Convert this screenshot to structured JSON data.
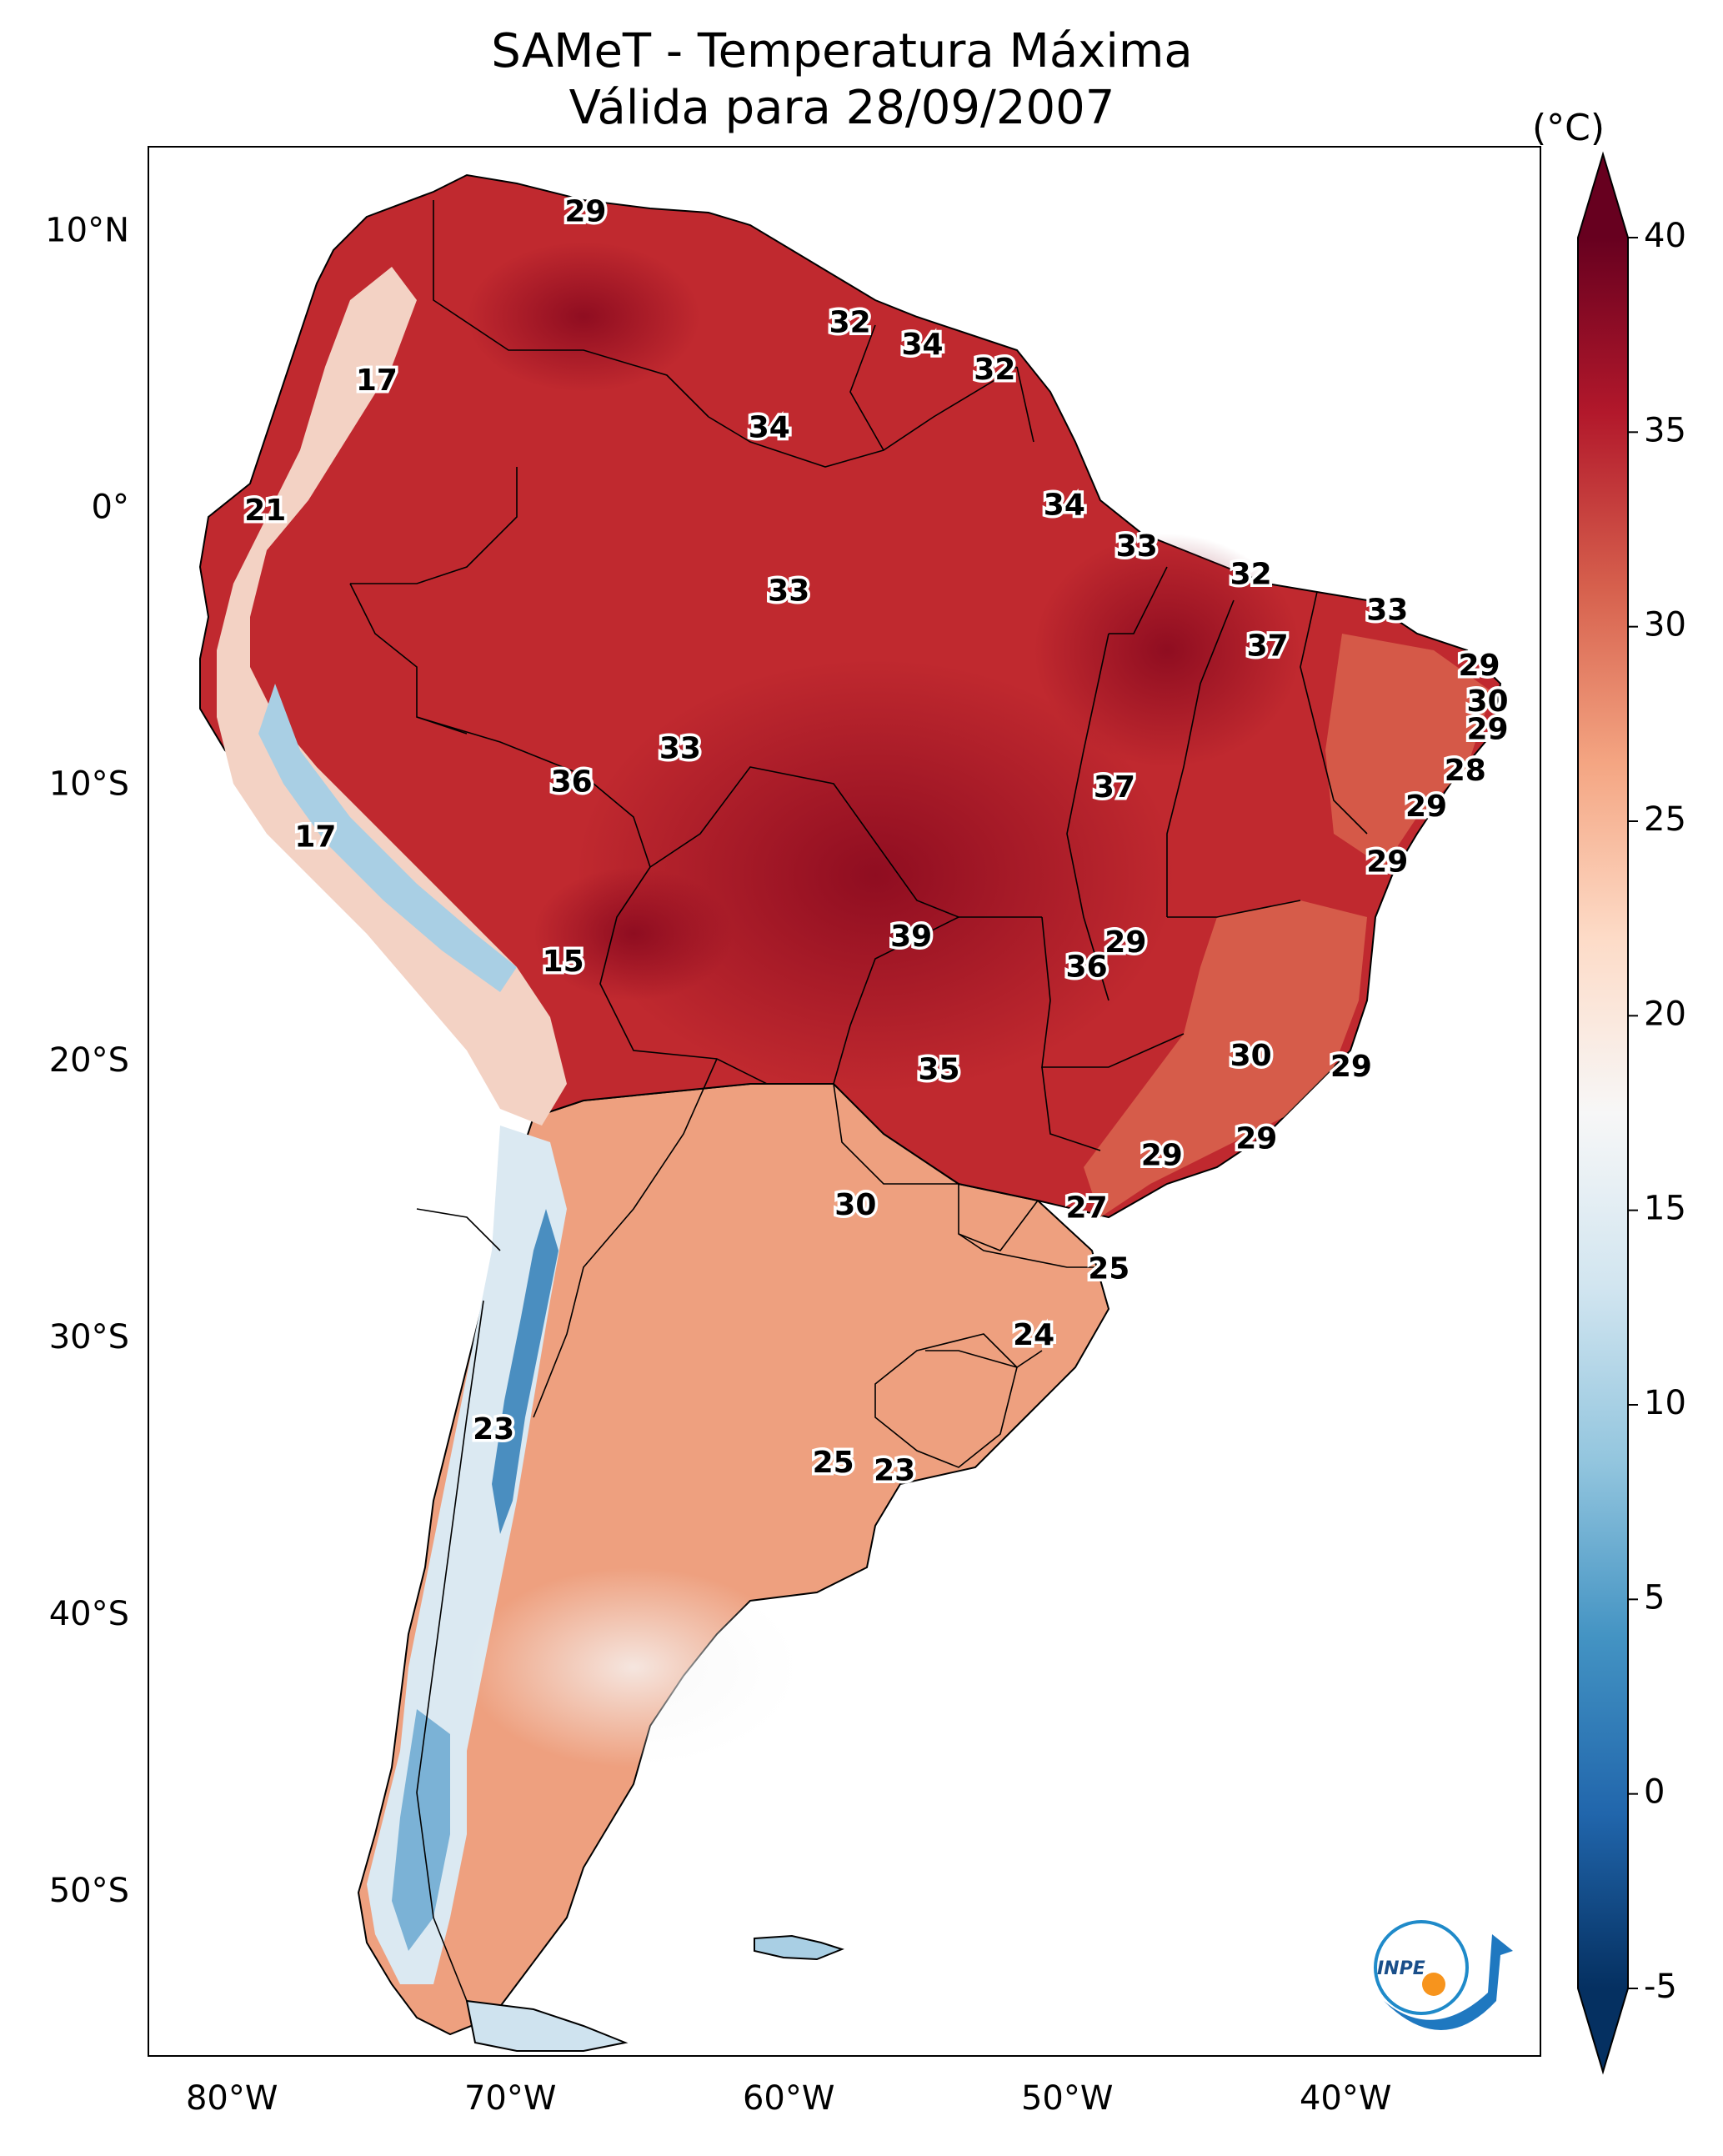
{
  "title": {
    "line1": "SAMeT - Temperatura Máxima",
    "line2": "Válida para 28/09/2007"
  },
  "colorbar": {
    "unit": "(°C)",
    "ticks": [
      "40",
      "35",
      "30",
      "25",
      "20",
      "15",
      "10",
      "5",
      "0",
      "-5"
    ],
    "tick_values": [
      40,
      35,
      30,
      25,
      20,
      15,
      10,
      5,
      0,
      -5
    ],
    "range": [
      -5,
      40
    ],
    "colors": [
      "#053061",
      "#2166ac",
      "#4393c3",
      "#92c5de",
      "#d1e5f0",
      "#f7f7f7",
      "#fddbc7",
      "#f4a582",
      "#d6604d",
      "#b2182b",
      "#67001f"
    ]
  },
  "axes": {
    "lat_ticks": [
      "10°N",
      "0°",
      "10°S",
      "20°S",
      "30°S",
      "40°S",
      "50°S"
    ],
    "lat_values": [
      10,
      0,
      -10,
      -20,
      -30,
      -40,
      -50
    ],
    "lon_ticks": [
      "80°W",
      "70°W",
      "60°W",
      "50°W",
      "40°W"
    ],
    "lon_values": [
      -80,
      -70,
      -60,
      -50,
      -40
    ],
    "lon_range": [
      -83,
      -33
    ],
    "lat_range": [
      13,
      -56
    ]
  },
  "logo": {
    "text": "INPE"
  },
  "city_labels": [
    {
      "value": "29",
      "lon": -67.3,
      "lat": 10.6
    },
    {
      "value": "17",
      "lon": -74.8,
      "lat": 4.5
    },
    {
      "value": "32",
      "lon": -57.8,
      "lat": 6.6
    },
    {
      "value": "34",
      "lon": -55.2,
      "lat": 5.8
    },
    {
      "value": "32",
      "lon": -52.6,
      "lat": 4.9
    },
    {
      "value": "34",
      "lon": -60.7,
      "lat": 2.8
    },
    {
      "value": "21",
      "lon": -78.8,
      "lat": -0.2
    },
    {
      "value": "34",
      "lon": -50.1,
      "lat": 0.0
    },
    {
      "value": "33",
      "lon": -47.5,
      "lat": -1.5
    },
    {
      "value": "33",
      "lon": -60.0,
      "lat": -3.1
    },
    {
      "value": "32",
      "lon": -43.4,
      "lat": -2.5
    },
    {
      "value": "33",
      "lon": -38.5,
      "lat": -3.8
    },
    {
      "value": "37",
      "lon": -42.8,
      "lat": -5.1
    },
    {
      "value": "29",
      "lon": -35.2,
      "lat": -5.8
    },
    {
      "value": "30",
      "lon": -34.9,
      "lat": -7.1
    },
    {
      "value": "29",
      "lon": -34.9,
      "lat": -8.1
    },
    {
      "value": "33",
      "lon": -63.9,
      "lat": -8.8
    },
    {
      "value": "36",
      "lon": -67.8,
      "lat": -10.0
    },
    {
      "value": "37",
      "lon": -48.3,
      "lat": -10.2
    },
    {
      "value": "28",
      "lon": -35.7,
      "lat": -9.6
    },
    {
      "value": "29",
      "lon": -37.1,
      "lat": -10.9
    },
    {
      "value": "17",
      "lon": -77.0,
      "lat": -12.0
    },
    {
      "value": "29",
      "lon": -38.5,
      "lat": -12.9
    },
    {
      "value": "15",
      "lon": -68.1,
      "lat": -16.5
    },
    {
      "value": "39",
      "lon": -55.6,
      "lat": -15.6
    },
    {
      "value": "29",
      "lon": -47.9,
      "lat": -15.8
    },
    {
      "value": "36",
      "lon": -49.3,
      "lat": -16.7
    },
    {
      "value": "30",
      "lon": -43.4,
      "lat": -19.9
    },
    {
      "value": "29",
      "lon": -39.8,
      "lat": -20.3
    },
    {
      "value": "35",
      "lon": -54.6,
      "lat": -20.4
    },
    {
      "value": "29",
      "lon": -46.6,
      "lat": -23.5
    },
    {
      "value": "29",
      "lon": -43.2,
      "lat": -22.9
    },
    {
      "value": "30",
      "lon": -57.6,
      "lat": -25.3
    },
    {
      "value": "27",
      "lon": -49.3,
      "lat": -25.4
    },
    {
      "value": "25",
      "lon": -48.5,
      "lat": -27.6
    },
    {
      "value": "24",
      "lon": -51.2,
      "lat": -30.0
    },
    {
      "value": "23",
      "lon": -70.6,
      "lat": -33.4
    },
    {
      "value": "25",
      "lon": -58.4,
      "lat": -34.6
    },
    {
      "value": "23",
      "lon": -56.2,
      "lat": -34.9
    }
  ]
}
